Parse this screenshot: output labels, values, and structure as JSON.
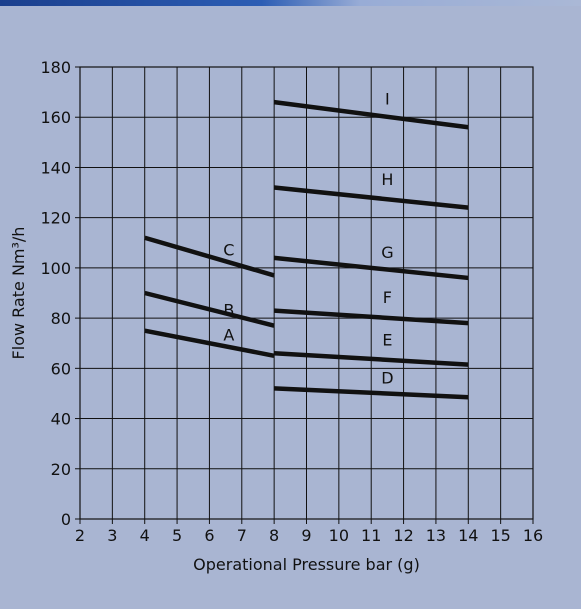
{
  "colors": {
    "panel_bg": "#a9b5d2",
    "plot_bg": "#a9b5d2",
    "grid": "#111111",
    "series": "#111111",
    "header_strip": "#1b3f8d"
  },
  "chart_data": {
    "type": "line",
    "title": "",
    "xlabel": "Operational Pressure bar (g)",
    "ylabel": "Flow Rate Nm³/h",
    "xlim": [
      2,
      16
    ],
    "ylim": [
      0,
      180
    ],
    "xticks": [
      2,
      3,
      4,
      5,
      6,
      7,
      8,
      9,
      10,
      11,
      12,
      13,
      14,
      15,
      16
    ],
    "yticks": [
      0,
      20,
      40,
      60,
      80,
      100,
      120,
      140,
      160,
      180
    ],
    "grid": true,
    "legend": "none",
    "series": [
      {
        "name": "A",
        "x": [
          4,
          8
        ],
        "y": [
          75,
          65
        ],
        "label_at": [
          6.6,
          71
        ]
      },
      {
        "name": "B",
        "x": [
          4,
          8
        ],
        "y": [
          90,
          77
        ],
        "label_at": [
          6.6,
          81
        ]
      },
      {
        "name": "C",
        "x": [
          4,
          8
        ],
        "y": [
          112,
          97
        ],
        "label_at": [
          6.6,
          105
        ]
      },
      {
        "name": "D",
        "x": [
          8,
          14
        ],
        "y": [
          52,
          48.5
        ],
        "label_at": [
          11.5,
          54
        ]
      },
      {
        "name": "E",
        "x": [
          8,
          14
        ],
        "y": [
          66,
          61.5
        ],
        "label_at": [
          11.5,
          69
        ]
      },
      {
        "name": "F",
        "x": [
          8,
          14
        ],
        "y": [
          83,
          78
        ],
        "label_at": [
          11.5,
          86
        ]
      },
      {
        "name": "G",
        "x": [
          8,
          14
        ],
        "y": [
          104,
          96
        ],
        "label_at": [
          11.5,
          104
        ]
      },
      {
        "name": "H",
        "x": [
          8,
          14
        ],
        "y": [
          132,
          124
        ],
        "label_at": [
          11.5,
          133
        ]
      },
      {
        "name": "I",
        "x": [
          8,
          14
        ],
        "y": [
          166,
          156
        ],
        "label_at": [
          11.5,
          165
        ]
      }
    ]
  }
}
